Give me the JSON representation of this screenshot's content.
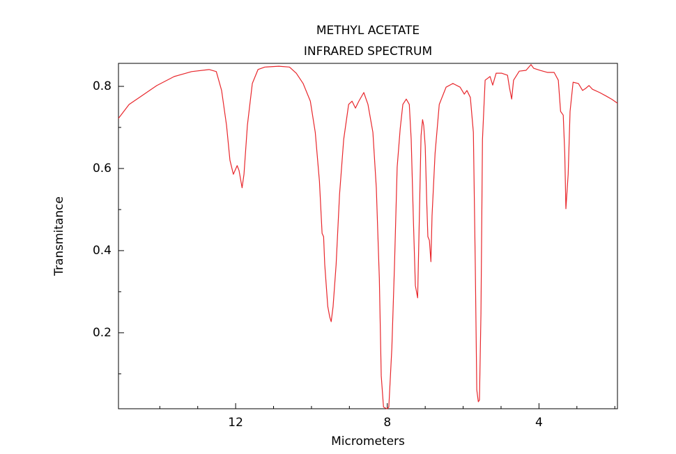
{
  "chart_data": {
    "type": "line",
    "title": [
      "METHYL ACETATE",
      "INFRARED SPECTRUM"
    ],
    "xlabel": "Micrometers",
    "ylabel": "Transmitance",
    "color": "#e8262b",
    "xlim": [
      15.09,
      1.93
    ],
    "ylim": [
      0.015,
      0.856
    ],
    "xticks": [
      12,
      8,
      4
    ],
    "yticks": [
      0.2,
      0.4,
      0.6,
      0.8
    ],
    "xminorticks": [
      14,
      13,
      11,
      10,
      9,
      7,
      6,
      5,
      3,
      2
    ],
    "yminorticks": [
      0.1,
      0.3,
      0.5,
      0.7
    ],
    "x": [
      15.09,
      14.81,
      14.54,
      14.08,
      13.62,
      13.16,
      12.7,
      12.51,
      12.37,
      12.24,
      12.15,
      12.06,
      11.96,
      11.91,
      11.83,
      11.78,
      11.69,
      11.56,
      11.41,
      11.23,
      10.86,
      10.58,
      10.4,
      10.22,
      10.03,
      9.9,
      9.79,
      9.72,
      9.68,
      9.65,
      9.57,
      9.52,
      9.48,
      9.43,
      9.35,
      9.26,
      9.15,
      9.02,
      8.93,
      8.84,
      8.75,
      8.62,
      8.51,
      8.38,
      8.29,
      8.21,
      8.16,
      8.1,
      8.01,
      7.96,
      7.88,
      7.81,
      7.74,
      7.66,
      7.59,
      7.5,
      7.42,
      7.37,
      7.31,
      7.26,
      7.2,
      7.15,
      7.11,
      7.07,
      7.04,
      7.0,
      6.96,
      6.93,
      6.89,
      6.85,
      6.82,
      6.74,
      6.63,
      6.45,
      6.27,
      6.08,
      5.97,
      5.9,
      5.81,
      5.73,
      5.68,
      5.64,
      5.6,
      5.57,
      5.53,
      5.49,
      5.42,
      5.29,
      5.22,
      5.13,
      4.98,
      4.83,
      4.78,
      4.72,
      4.67,
      4.52,
      4.34,
      4.21,
      4.14,
      3.97,
      3.78,
      3.6,
      3.49,
      3.43,
      3.36,
      3.32,
      3.29,
      3.23,
      3.18,
      3.1,
      2.96,
      2.85,
      2.77,
      2.68,
      2.59,
      2.4,
      2.22,
      2.07,
      1.93
    ],
    "values": [
      0.722,
      0.756,
      0.773,
      0.802,
      0.824,
      0.836,
      0.841,
      0.836,
      0.79,
      0.705,
      0.62,
      0.586,
      0.607,
      0.595,
      0.553,
      0.586,
      0.705,
      0.807,
      0.841,
      0.847,
      0.849,
      0.847,
      0.832,
      0.807,
      0.764,
      0.688,
      0.569,
      0.442,
      0.434,
      0.366,
      0.264,
      0.239,
      0.227,
      0.264,
      0.366,
      0.536,
      0.671,
      0.756,
      0.764,
      0.747,
      0.764,
      0.785,
      0.756,
      0.688,
      0.553,
      0.332,
      0.095,
      0.019,
      0.015,
      0.019,
      0.163,
      0.366,
      0.603,
      0.697,
      0.756,
      0.769,
      0.756,
      0.671,
      0.468,
      0.315,
      0.285,
      0.502,
      0.68,
      0.719,
      0.705,
      0.654,
      0.519,
      0.434,
      0.425,
      0.373,
      0.485,
      0.637,
      0.756,
      0.798,
      0.807,
      0.798,
      0.781,
      0.79,
      0.773,
      0.688,
      0.366,
      0.061,
      0.032,
      0.036,
      0.247,
      0.671,
      0.815,
      0.824,
      0.803,
      0.832,
      0.832,
      0.827,
      0.798,
      0.769,
      0.815,
      0.837,
      0.839,
      0.853,
      0.844,
      0.839,
      0.834,
      0.834,
      0.815,
      0.739,
      0.73,
      0.637,
      0.502,
      0.586,
      0.739,
      0.81,
      0.807,
      0.79,
      0.795,
      0.802,
      0.793,
      0.785,
      0.776,
      0.768,
      0.759
    ]
  }
}
